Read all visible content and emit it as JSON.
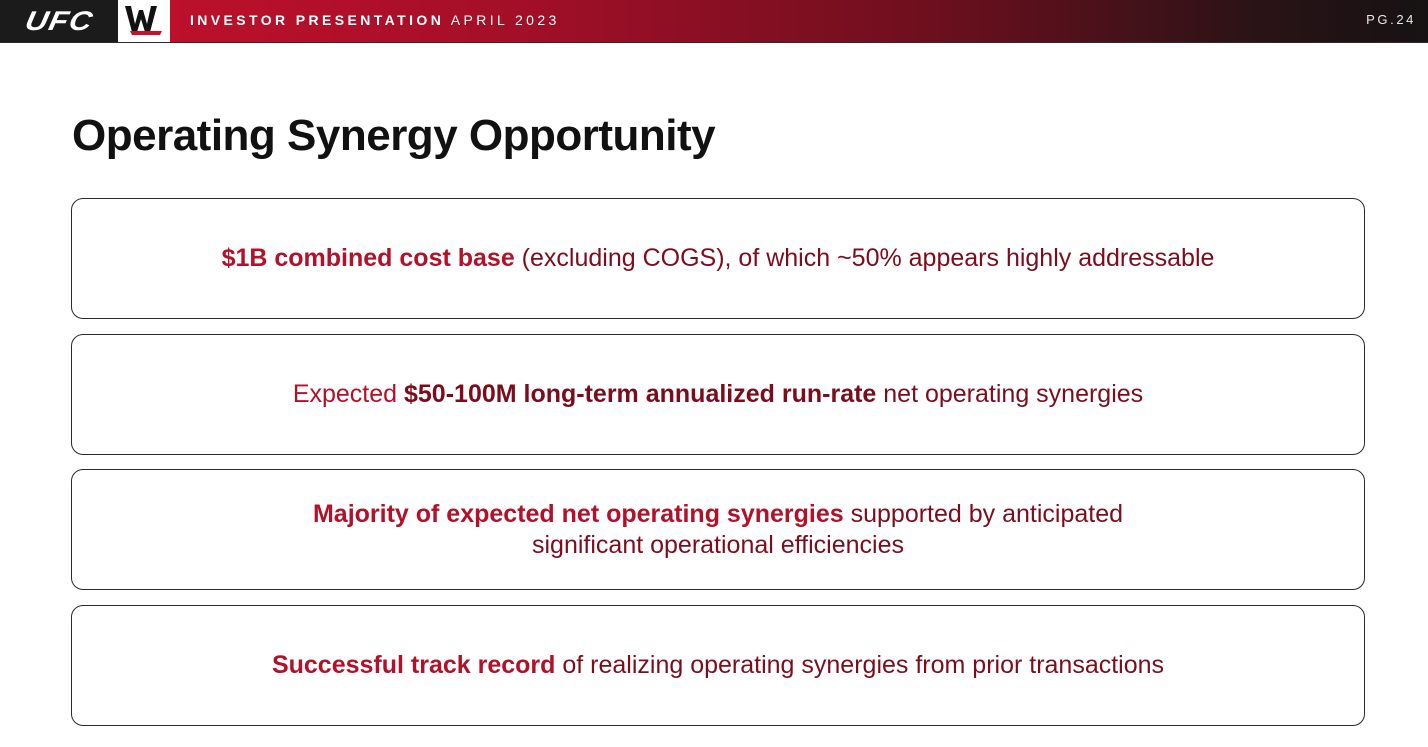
{
  "header": {
    "ufc_logo": "UFC",
    "wwe_logo_icon": "wwe-logo-icon",
    "title_bold": "INVESTOR PRESENTATION",
    "title_light": "APRIL 2023",
    "page_number": "PG.24"
  },
  "page": {
    "title": "Operating Synergy Opportunity"
  },
  "cards": [
    {
      "highlight": "$1B combined cost base",
      "rest": " (excluding COGS), of which ~50% appears highly addressable"
    },
    {
      "lead": "Expected ",
      "highlight": "$50-100M long-term annualized run-rate",
      "rest": " net operating synergies"
    },
    {
      "highlight": "Majority of expected net operating synergies",
      "rest_line1": " supported by anticipated",
      "rest_line2": "significant operational efficiencies"
    },
    {
      "highlight": "Successful track record",
      "rest": " of realizing operating synergies from prior transactions"
    }
  ],
  "colors": {
    "brand_red": "#c8102e",
    "highlight_red": "#b3102a",
    "dark_red": "#7d0d1d",
    "header_dark": "#161213"
  }
}
